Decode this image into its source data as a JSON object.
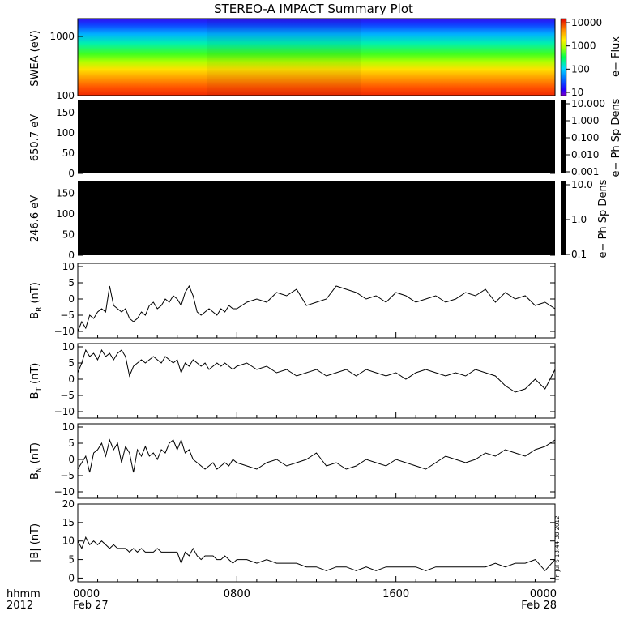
{
  "title": "STEREO-A IMPACT Summary Plot",
  "stamp": "Fri Jul  6 18:44:38 2012",
  "time_axis": {
    "row1_label": "hhmm",
    "row2_label": "2012",
    "ticks": [
      {
        "hours": 0,
        "hhmm": "0000",
        "date": "Feb 27"
      },
      {
        "hours": 8,
        "hhmm": "0800",
        "date": ""
      },
      {
        "hours": 16,
        "hhmm": "1600",
        "date": ""
      },
      {
        "hours": 24,
        "hhmm": "0000",
        "date": "Feb 28"
      }
    ],
    "range_hours": [
      0,
      24
    ]
  },
  "chart_data": [
    {
      "type": "heatmap",
      "ylabel": "SWEA (eV)",
      "yscale": "log",
      "ylim": [
        100,
        2000
      ],
      "yticks": [
        {
          "value": 1000,
          "label": "1000"
        },
        {
          "value": 100,
          "label": "100"
        }
      ],
      "colorbar": {
        "label": "e− Flux",
        "scale": "log",
        "range": [
          10,
          10000
        ],
        "ticks": [
          "10000",
          "1000",
          "100",
          "10"
        ],
        "colors": [
          "#000000",
          "#7a00c8",
          "#0018ff",
          "#00a8ff",
          "#00f0c8",
          "#00ff30",
          "#c8ff00",
          "#ffe000",
          "#ff9000",
          "#ff3000",
          "#e00000"
        ]
      },
      "description_levels": {
        "low_energy_flux": 5000,
        "mid_energy_flux": 1000,
        "high_energy_flux": 30
      }
    },
    {
      "type": "heatmap",
      "ylabel": "650.7 eV",
      "ylim": [
        0,
        180
      ],
      "yticks": [
        "150",
        "100",
        "50",
        "0"
      ],
      "colorbar": {
        "label": "e− Ph Sp Dens",
        "scale": "log",
        "range": [
          0.001,
          10.0
        ],
        "ticks": [
          "10.000",
          "1.000",
          "0.100",
          "0.010",
          "0.001"
        ]
      },
      "fill": "#000000"
    },
    {
      "type": "heatmap",
      "ylabel": "246.6 eV",
      "ylim": [
        0,
        180
      ],
      "yticks": [
        "150",
        "100",
        "50",
        "0"
      ],
      "colorbar": {
        "label": "e− Ph Sp Dens",
        "scale": "log",
        "range": [
          0.1,
          10.0
        ],
        "ticks": [
          "10.0",
          "1.0",
          "0.1"
        ]
      },
      "fill": "#000000"
    },
    {
      "type": "line",
      "ylabel_main": "B",
      "ylabel_sub": "R",
      "ylabel_unit": "(nT)",
      "ylim": [
        -12,
        11
      ],
      "yticks": [
        "10",
        "5",
        "0",
        "−5",
        "−10"
      ],
      "x_hours": [
        0.0,
        0.2,
        0.4,
        0.6,
        0.8,
        1.0,
        1.2,
        1.4,
        1.6,
        1.8,
        2.0,
        2.2,
        2.4,
        2.6,
        2.8,
        3.0,
        3.2,
        3.4,
        3.6,
        3.8,
        4.0,
        4.2,
        4.4,
        4.6,
        4.8,
        5.0,
        5.2,
        5.4,
        5.6,
        5.8,
        6.0,
        6.2,
        6.4,
        6.6,
        6.8,
        7.0,
        7.2,
        7.4,
        7.6,
        7.8,
        8.0,
        8.5,
        9.0,
        9.5,
        10.0,
        10.5,
        11.0,
        11.5,
        12.0,
        12.5,
        13.0,
        13.5,
        14.0,
        14.5,
        15.0,
        15.5,
        16.0,
        16.5,
        17.0,
        17.5,
        18.0,
        18.5,
        19.0,
        19.5,
        20.0,
        20.5,
        21.0,
        21.5,
        22.0,
        22.5,
        23.0,
        23.5,
        24.0
      ],
      "values": [
        -10,
        -7,
        -9,
        -5,
        -6,
        -4,
        -3,
        -4,
        4,
        -2,
        -3,
        -4,
        -3,
        -6,
        -7,
        -6,
        -4,
        -5,
        -2,
        -1,
        -3,
        -2,
        0,
        -1,
        1,
        0,
        -2,
        2,
        4,
        1,
        -4,
        -5,
        -4,
        -3,
        -4,
        -5,
        -3,
        -4,
        -2,
        -3,
        -3,
        -1,
        0,
        -1,
        2,
        1,
        3,
        -2,
        -1,
        0,
        4,
        3,
        2,
        0,
        1,
        -1,
        2,
        1,
        -1,
        0,
        1,
        -1,
        0,
        2,
        1,
        3,
        -1,
        2,
        0,
        1,
        -2,
        -1,
        -3
      ]
    },
    {
      "type": "line",
      "ylabel_main": "B",
      "ylabel_sub": "T",
      "ylabel_unit": "(nT)",
      "ylim": [
        -12,
        11
      ],
      "yticks": [
        "10",
        "5",
        "0",
        "−5",
        "−10"
      ],
      "x_hours": [
        0.0,
        0.2,
        0.4,
        0.6,
        0.8,
        1.0,
        1.2,
        1.4,
        1.6,
        1.8,
        2.0,
        2.2,
        2.4,
        2.6,
        2.8,
        3.0,
        3.2,
        3.4,
        3.6,
        3.8,
        4.0,
        4.2,
        4.4,
        4.6,
        4.8,
        5.0,
        5.2,
        5.4,
        5.6,
        5.8,
        6.0,
        6.2,
        6.4,
        6.6,
        6.8,
        7.0,
        7.2,
        7.4,
        7.6,
        7.8,
        8.0,
        8.5,
        9.0,
        9.5,
        10.0,
        10.5,
        11.0,
        11.5,
        12.0,
        12.5,
        13.0,
        13.5,
        14.0,
        14.5,
        15.0,
        15.5,
        16.0,
        16.5,
        17.0,
        17.5,
        18.0,
        18.5,
        19.0,
        19.5,
        20.0,
        20.5,
        21.0,
        21.5,
        22.0,
        22.5,
        23.0,
        23.5,
        24.0
      ],
      "values": [
        2,
        5,
        9,
        7,
        8,
        6,
        9,
        7,
        8,
        6,
        8,
        9,
        7,
        1,
        4,
        5,
        6,
        5,
        6,
        7,
        6,
        5,
        7,
        6,
        5,
        6,
        2,
        5,
        4,
        6,
        5,
        4,
        5,
        3,
        4,
        5,
        4,
        5,
        4,
        3,
        4,
        5,
        3,
        4,
        2,
        3,
        1,
        2,
        3,
        1,
        2,
        3,
        1,
        3,
        2,
        1,
        2,
        0,
        2,
        3,
        2,
        1,
        2,
        1,
        3,
        2,
        1,
        -2,
        -4,
        -3,
        0,
        -3,
        3
      ]
    },
    {
      "type": "line",
      "ylabel_main": "B",
      "ylabel_sub": "N",
      "ylabel_unit": "(nT)",
      "ylim": [
        -12,
        11
      ],
      "yticks": [
        "10",
        "5",
        "0",
        "−5",
        "−10"
      ],
      "x_hours": [
        0.0,
        0.2,
        0.4,
        0.6,
        0.8,
        1.0,
        1.2,
        1.4,
        1.6,
        1.8,
        2.0,
        2.2,
        2.4,
        2.6,
        2.8,
        3.0,
        3.2,
        3.4,
        3.6,
        3.8,
        4.0,
        4.2,
        4.4,
        4.6,
        4.8,
        5.0,
        5.2,
        5.4,
        5.6,
        5.8,
        6.0,
        6.2,
        6.4,
        6.6,
        6.8,
        7.0,
        7.2,
        7.4,
        7.6,
        7.8,
        8.0,
        8.5,
        9.0,
        9.5,
        10.0,
        10.5,
        11.0,
        11.5,
        12.0,
        12.5,
        13.0,
        13.5,
        14.0,
        14.5,
        15.0,
        15.5,
        16.0,
        16.5,
        17.0,
        17.5,
        18.0,
        18.5,
        19.0,
        19.5,
        20.0,
        20.5,
        21.0,
        21.5,
        22.0,
        22.5,
        23.0,
        23.5,
        24.0
      ],
      "values": [
        -3,
        -1,
        1,
        -4,
        2,
        3,
        5,
        1,
        6,
        3,
        5,
        -1,
        4,
        2,
        -4,
        3,
        1,
        4,
        1,
        2,
        0,
        3,
        2,
        5,
        6,
        3,
        6,
        2,
        3,
        0,
        -1,
        -2,
        -3,
        -2,
        -1,
        -3,
        -2,
        -1,
        -2,
        0,
        -1,
        -2,
        -3,
        -1,
        0,
        -2,
        -1,
        0,
        2,
        -2,
        -1,
        -3,
        -2,
        0,
        -1,
        -2,
        0,
        -1,
        -2,
        -3,
        -1,
        1,
        0,
        -1,
        0,
        2,
        1,
        3,
        2,
        1,
        3,
        4,
        6
      ]
    },
    {
      "type": "line",
      "ylabel": "|B| (nT)",
      "ylim": [
        -1,
        20
      ],
      "yticks": [
        "20",
        "15",
        "10",
        "5",
        "0"
      ],
      "x_hours": [
        0.0,
        0.2,
        0.4,
        0.6,
        0.8,
        1.0,
        1.2,
        1.4,
        1.6,
        1.8,
        2.0,
        2.2,
        2.4,
        2.6,
        2.8,
        3.0,
        3.2,
        3.4,
        3.6,
        3.8,
        4.0,
        4.2,
        4.4,
        4.6,
        4.8,
        5.0,
        5.2,
        5.4,
        5.6,
        5.8,
        6.0,
        6.2,
        6.4,
        6.6,
        6.8,
        7.0,
        7.2,
        7.4,
        7.6,
        7.8,
        8.0,
        8.5,
        9.0,
        9.5,
        10.0,
        10.5,
        11.0,
        11.5,
        12.0,
        12.5,
        13.0,
        13.5,
        14.0,
        14.5,
        15.0,
        15.5,
        16.0,
        16.5,
        17.0,
        17.5,
        18.0,
        18.5,
        19.0,
        19.5,
        20.0,
        20.5,
        21.0,
        21.5,
        22.0,
        22.5,
        23.0,
        23.5,
        24.0
      ],
      "values": [
        10,
        8,
        11,
        9,
        10,
        9,
        10,
        9,
        8,
        9,
        8,
        8,
        8,
        7,
        8,
        7,
        8,
        7,
        7,
        7,
        8,
        7,
        7,
        7,
        7,
        7,
        4,
        7,
        6,
        8,
        6,
        5,
        6,
        6,
        6,
        5,
        5,
        6,
        5,
        4,
        5,
        5,
        4,
        5,
        4,
        4,
        4,
        3,
        3,
        2,
        3,
        3,
        2,
        3,
        2,
        3,
        3,
        3,
        3,
        2,
        3,
        3,
        3,
        3,
        3,
        3,
        4,
        3,
        4,
        4,
        5,
        2,
        5
      ]
    }
  ]
}
